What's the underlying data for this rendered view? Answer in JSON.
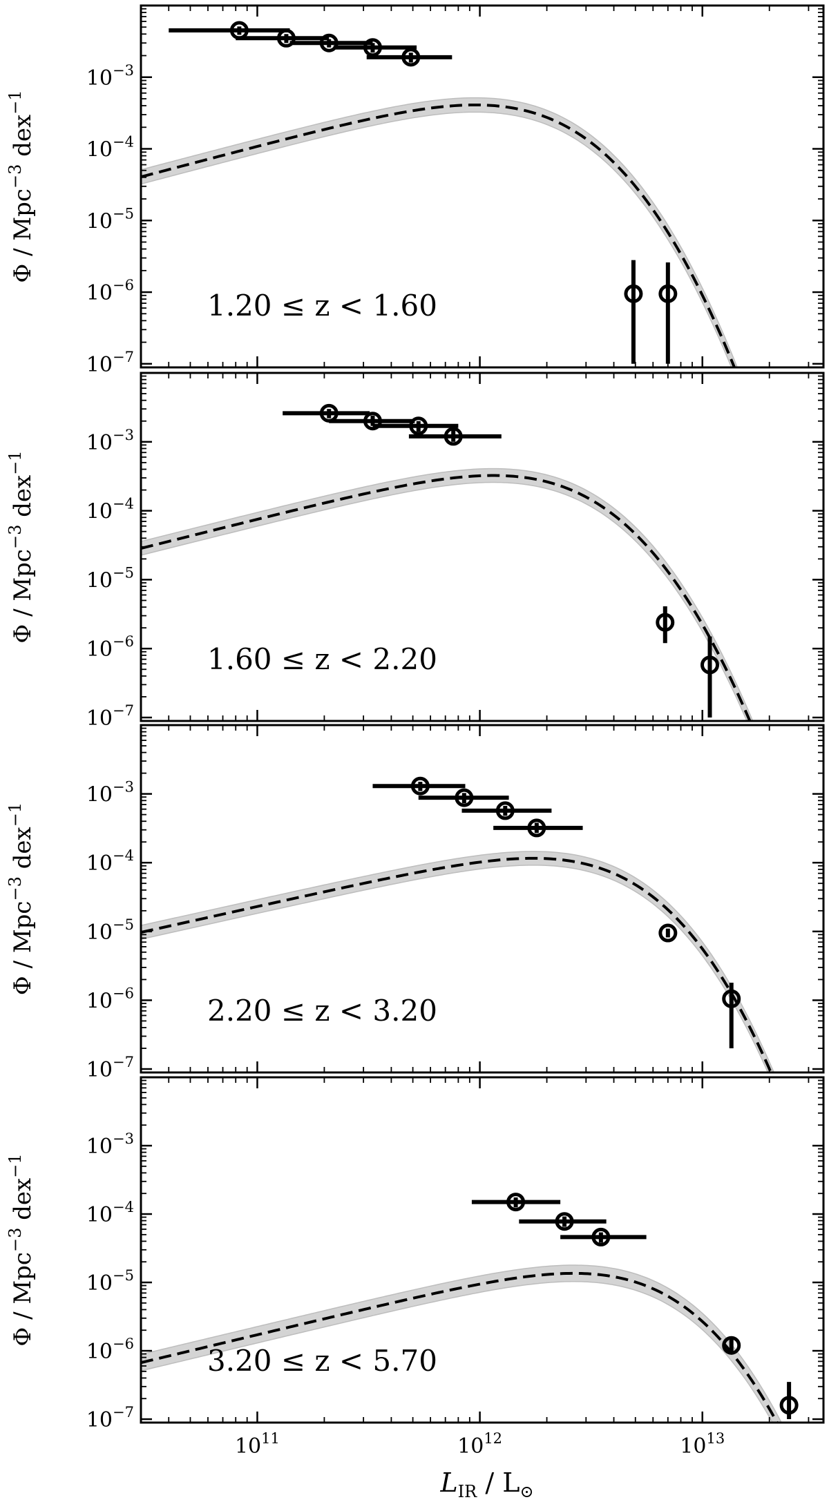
{
  "chart_data": [
    {
      "type": "scatter",
      "label": "1.20 ≤ z < 1.60",
      "ylabel": "Φ / Mpc⁻³ dex⁻¹",
      "xscale": "log",
      "yscale": "log",
      "xlim": [
        30000000000.0,
        35000000000000.0
      ],
      "ylim": [
        1e-07,
        0.01
      ],
      "fit": {
        "phi_star": 0.00095,
        "L_star": 1400000000000.0,
        "alpha": 0.18,
        "sigma": 0.22,
        "band_dex": 0.1
      },
      "points": [
        {
          "x": 83000000000.0,
          "y": 0.0045,
          "x_err": [
            40000000000.0,
            140000000000.0
          ],
          "y_err": [
            0.0039,
            0.0051
          ]
        },
        {
          "x": 135000000000.0,
          "y": 0.0035,
          "x_err": [
            80000000000.0,
            210000000000.0
          ],
          "y_err": [
            0.003,
            0.004
          ]
        },
        {
          "x": 210000000000.0,
          "y": 0.003,
          "x_err": [
            140000000000.0,
            330000000000.0
          ],
          "y_err": [
            0.0026,
            0.0034
          ]
        },
        {
          "x": 330000000000.0,
          "y": 0.0026,
          "x_err": [
            220000000000.0,
            520000000000.0
          ],
          "y_err": [
            0.0022,
            0.003
          ]
        },
        {
          "x": 490000000000.0,
          "y": 0.0019,
          "x_err": [
            310000000000.0,
            750000000000.0
          ],
          "y_err": [
            0.0016,
            0.0022
          ]
        },
        {
          "x": 4900000000000.0,
          "y": 9.5e-07,
          "x_err": [
            4900000000000.0,
            4900000000000.0
          ],
          "y_err": [
            1e-07,
            2.8e-06
          ]
        },
        {
          "x": 7000000000000.0,
          "y": 9.5e-07,
          "x_err": [
            7000000000000.0,
            7000000000000.0
          ],
          "y_err": [
            1e-07,
            2.6e-06
          ]
        }
      ]
    },
    {
      "type": "scatter",
      "label": "1.60 ≤ z < 2.20",
      "ylabel": "Φ / Mpc⁻³ dex⁻¹",
      "xscale": "log",
      "yscale": "log",
      "xlim": [
        30000000000.0,
        35000000000000.0
      ],
      "ylim": [
        1e-07,
        0.01
      ],
      "fit": {
        "phi_star": 0.00075,
        "L_star": 1700000000000.0,
        "alpha": 0.19,
        "sigma": 0.22,
        "band_dex": 0.1
      },
      "points": [
        {
          "x": 210000000000.0,
          "y": 0.0026,
          "x_err": [
            130000000000.0,
            320000000000.0
          ],
          "y_err": [
            0.0022,
            0.003
          ]
        },
        {
          "x": 330000000000.0,
          "y": 0.002,
          "x_err": [
            210000000000.0,
            510000000000.0
          ],
          "y_err": [
            0.0017,
            0.0024
          ]
        },
        {
          "x": 530000000000.0,
          "y": 0.0017,
          "x_err": [
            330000000000.0,
            800000000000.0
          ],
          "y_err": [
            0.0014,
            0.002
          ]
        },
        {
          "x": 760000000000.0,
          "y": 0.0012,
          "x_err": [
            480000000000.0,
            1250000000000.0
          ],
          "y_err": [
            0.001,
            0.0015
          ]
        },
        {
          "x": 6800000000000.0,
          "y": 2.4e-06,
          "x_err": [
            6800000000000.0,
            6800000000000.0
          ],
          "y_err": [
            1.2e-06,
            4.1e-06
          ]
        },
        {
          "x": 10800000000000.0,
          "y": 5.8e-07,
          "x_err": [
            10800000000000.0,
            10800000000000.0
          ],
          "y_err": [
            1e-07,
            1.5e-06
          ]
        }
      ]
    },
    {
      "type": "scatter",
      "label": "2.20 ≤ z < 3.20",
      "ylabel": "Φ / Mpc⁻³ dex⁻¹",
      "xscale": "log",
      "yscale": "log",
      "xlim": [
        30000000000.0,
        35000000000000.0
      ],
      "ylim": [
        1e-07,
        0.01
      ],
      "fit": {
        "phi_star": 0.00028,
        "L_star": 3200000000000.0,
        "alpha": 0.28,
        "sigma": 0.2,
        "band_dex": 0.1
      },
      "points": [
        {
          "x": 540000000000.0,
          "y": 0.0013,
          "x_err": [
            330000000000.0,
            860000000000.0
          ],
          "y_err": [
            0.0011,
            0.0015
          ]
        },
        {
          "x": 850000000000.0,
          "y": 0.00088,
          "x_err": [
            530000000000.0,
            1350000000000.0
          ],
          "y_err": [
            0.00073,
            0.00103
          ]
        },
        {
          "x": 1300000000000.0,
          "y": 0.00057,
          "x_err": [
            830000000000.0,
            2100000000000.0
          ],
          "y_err": [
            0.00048,
            0.00067
          ]
        },
        {
          "x": 1800000000000.0,
          "y": 0.00032,
          "x_err": [
            1150000000000.0,
            2900000000000.0
          ],
          "y_err": [
            0.00027,
            0.00038
          ]
        },
        {
          "x": 7000000000000.0,
          "y": 9.5e-06,
          "x_err": [
            7000000000000.0,
            7000000000000.0
          ],
          "y_err": [
            8.2e-06,
            1.1e-05
          ]
        },
        {
          "x": 13500000000000.0,
          "y": 1.05e-06,
          "x_err": [
            13500000000000.0,
            13500000000000.0
          ],
          "y_err": [
            2e-07,
            1.8e-06
          ]
        }
      ]
    },
    {
      "type": "scatter",
      "label": "3.20 ≤ z < 5.70",
      "ylabel": "Φ / Mpc⁻³ dex⁻¹",
      "xscale": "log",
      "yscale": "log",
      "xlim": [
        30000000000.0,
        35000000000000.0
      ],
      "ylim": [
        1e-07,
        0.01
      ],
      "fit": {
        "phi_star": 3.4e-05,
        "L_star": 4600000000000.0,
        "alpha": 0.22,
        "sigma": 0.2,
        "band_dex": 0.12
      },
      "points": [
        {
          "x": 1450000000000.0,
          "y": 0.00015,
          "x_err": [
            920000000000.0,
            2300000000000.0
          ],
          "y_err": [
            0.000125,
            0.000175
          ]
        },
        {
          "x": 2400000000000.0,
          "y": 7.8e-05,
          "x_err": [
            1500000000000.0,
            3700000000000.0
          ],
          "y_err": [
            6.5e-05,
            9.2e-05
          ]
        },
        {
          "x": 3500000000000.0,
          "y": 4.6e-05,
          "x_err": [
            2300000000000.0,
            5600000000000.0
          ],
          "y_err": [
            3.8e-05,
            5.4e-05
          ]
        },
        {
          "x": 13500000000000.0,
          "y": 1.2e-06,
          "x_err": [
            13500000000000.0,
            13500000000000.0
          ],
          "y_err": [
            9e-07,
            1.6e-06
          ]
        },
        {
          "x": 24500000000000.0,
          "y": 1.6e-07,
          "x_err": [
            24500000000000.0,
            24500000000000.0
          ],
          "y_err": [
            1e-07,
            3.5e-07
          ]
        }
      ]
    }
  ],
  "axes": {
    "x_ticks": [
      {
        "value": 100000000000.0,
        "base": "10",
        "exp": "11"
      },
      {
        "value": 1000000000000.0,
        "base": "10",
        "exp": "12"
      },
      {
        "value": 10000000000000.0,
        "base": "10",
        "exp": "13"
      }
    ],
    "y_ticks": [
      {
        "value": 1e-07,
        "base": "10",
        "exp": "−7"
      },
      {
        "value": 1e-06,
        "base": "10",
        "exp": "−6"
      },
      {
        "value": 1e-05,
        "base": "10",
        "exp": "−5"
      },
      {
        "value": 0.0001,
        "base": "10",
        "exp": "−4"
      },
      {
        "value": 0.001,
        "base": "10",
        "exp": "−3"
      }
    ],
    "ylabel": {
      "main": "Φ / Mpc",
      "sup1": "−3",
      "mid": " dex",
      "sup2": "−1"
    },
    "xlabel": {
      "main": "L",
      "sub": "IR",
      "mid": " / L",
      "sun": "⊙"
    }
  },
  "colors": {
    "band": "#d4d4d4",
    "band_edge": "#bdbdbd",
    "line": "#000000",
    "marker": "#000000"
  }
}
